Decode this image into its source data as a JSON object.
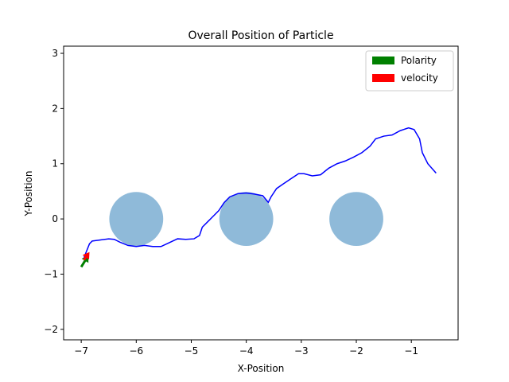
{
  "chart_data": {
    "type": "line",
    "title": "Overall Position of Particle",
    "xlabel": "X-Position",
    "ylabel": "Y-Position",
    "xlim": [
      -7.32,
      -0.15
    ],
    "ylim": [
      -2.19,
      3.13
    ],
    "xticks": [
      {
        "value": -7,
        "label": "−7"
      },
      {
        "value": -6,
        "label": "−6"
      },
      {
        "value": -5,
        "label": "−5"
      },
      {
        "value": -4,
        "label": "−4"
      },
      {
        "value": -3,
        "label": "−3"
      },
      {
        "value": -2,
        "label": "−2"
      },
      {
        "value": -1,
        "label": "−1"
      }
    ],
    "yticks": [
      {
        "value": -2,
        "label": "−2"
      },
      {
        "value": -1,
        "label": "−1"
      },
      0,
      1,
      2,
      3
    ],
    "obstacles": {
      "color": "#8fbad9",
      "x": [
        -6,
        -4,
        -2
      ],
      "y": [
        0,
        0,
        0
      ],
      "radius": 0.49
    },
    "series": [
      {
        "color": "#0000ff",
        "x": [
          -6.95,
          -6.85,
          -6.8,
          -6.65,
          -6.5,
          -6.4,
          -6.3,
          -6.15,
          -6.0,
          -5.85,
          -5.7,
          -5.55,
          -5.4,
          -5.25,
          -5.1,
          -4.95,
          -4.85,
          -4.8,
          -4.7,
          -4.6,
          -4.5,
          -4.4,
          -4.3,
          -4.15,
          -4.0,
          -3.85,
          -3.7,
          -3.6,
          -3.55,
          -3.45,
          -3.35,
          -3.2,
          -3.05,
          -2.95,
          -2.8,
          -2.65,
          -2.5,
          -2.35,
          -2.2,
          -2.05,
          -1.9,
          -1.75,
          -1.65,
          -1.5,
          -1.35,
          -1.2,
          -1.05,
          -0.95,
          -0.85,
          -0.8,
          -0.7,
          -0.55
        ],
        "values": [
          -0.7,
          -0.45,
          -0.4,
          -0.38,
          -0.36,
          -0.37,
          -0.42,
          -0.48,
          -0.5,
          -0.48,
          -0.5,
          -0.5,
          -0.43,
          -0.36,
          -0.37,
          -0.36,
          -0.3,
          -0.15,
          -0.05,
          0.05,
          0.15,
          0.3,
          0.4,
          0.46,
          0.47,
          0.45,
          0.42,
          0.3,
          0.4,
          0.55,
          0.62,
          0.72,
          0.82,
          0.82,
          0.78,
          0.8,
          0.92,
          1.0,
          1.05,
          1.12,
          1.2,
          1.32,
          1.45,
          1.5,
          1.52,
          1.6,
          1.65,
          1.62,
          1.45,
          1.2,
          1.0,
          0.83
        ]
      }
    ],
    "arrows": [
      {
        "name": "Polarity",
        "color": "#008000",
        "x": [
          -7.0,
          -6.87
        ],
        "y": [
          -0.87,
          -0.66
        ]
      },
      {
        "name": "velocity",
        "color": "#ff0000",
        "x": [
          -6.95,
          -6.85
        ],
        "y": [
          -0.74,
          -0.6
        ]
      }
    ],
    "legend": "upper right"
  }
}
